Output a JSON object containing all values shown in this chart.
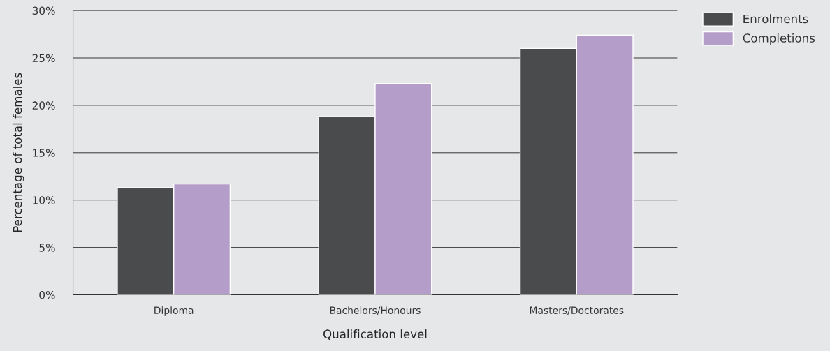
{
  "chart_data": {
    "type": "bar",
    "xlabel": "Qualification level",
    "ylabel": "Percentage of total females",
    "categories": [
      "Diploma",
      "Bachelors/Honours",
      "Masters/Doctorates"
    ],
    "series": [
      {
        "name": "Enrolments",
        "color": "#4a4b4d",
        "values": [
          11.3,
          18.8,
          26.0
        ]
      },
      {
        "name": "Completions",
        "color": "#b59dca",
        "values": [
          11.7,
          22.3,
          27.4
        ]
      }
    ],
    "ylim": [
      0,
      30
    ],
    "yticks": [
      {
        "value": 0,
        "label": "0%"
      },
      {
        "value": 5,
        "label": "5%"
      },
      {
        "value": 10,
        "label": "10%"
      },
      {
        "value": 15,
        "label": "15%"
      },
      {
        "value": 20,
        "label": "20%"
      },
      {
        "value": 25,
        "label": "25%"
      },
      {
        "value": 30,
        "label": "30%"
      }
    ],
    "grid": "y",
    "legend": "top right"
  }
}
